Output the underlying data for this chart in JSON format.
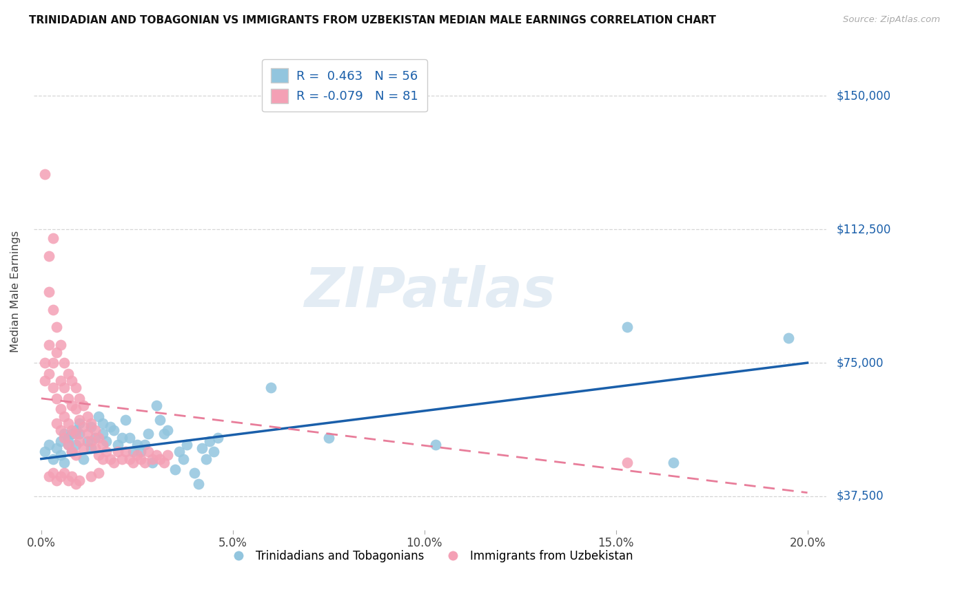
{
  "title": "TRINIDADIAN AND TOBAGONIAN VS IMMIGRANTS FROM UZBEKISTAN MEDIAN MALE EARNINGS CORRELATION CHART",
  "source": "Source: ZipAtlas.com",
  "xlabel_ticks": [
    "0.0%",
    "5.0%",
    "10.0%",
    "15.0%",
    "20.0%"
  ],
  "xlabel_tick_vals": [
    0.0,
    0.05,
    0.1,
    0.15,
    0.2
  ],
  "ylabel": "Median Male Earnings",
  "ylabel_ticks": [
    "$37,500",
    "$75,000",
    "$112,500",
    "$150,000"
  ],
  "ylabel_tick_vals": [
    37500,
    75000,
    112500,
    150000
  ],
  "xlim": [
    -0.002,
    0.205
  ],
  "ylim": [
    28000,
    162000
  ],
  "watermark": "ZIPatlas",
  "legend_blue_r": "0.463",
  "legend_blue_n": "56",
  "legend_pink_r": "-0.079",
  "legend_pink_n": "81",
  "blue_color": "#92c5de",
  "pink_color": "#f4a0b5",
  "blue_line_color": "#1a5faa",
  "pink_line_color": "#e87d9a",
  "blue_scatter": [
    [
      0.001,
      50000
    ],
    [
      0.002,
      52000
    ],
    [
      0.003,
      48000
    ],
    [
      0.004,
      51000
    ],
    [
      0.005,
      49000
    ],
    [
      0.005,
      53000
    ],
    [
      0.006,
      55000
    ],
    [
      0.006,
      47000
    ],
    [
      0.007,
      52000
    ],
    [
      0.007,
      54000
    ],
    [
      0.008,
      50000
    ],
    [
      0.008,
      55000
    ],
    [
      0.009,
      56000
    ],
    [
      0.009,
      52000
    ],
    [
      0.01,
      58000
    ],
    [
      0.01,
      55000
    ],
    [
      0.011,
      48000
    ],
    [
      0.012,
      53000
    ],
    [
      0.013,
      57000
    ],
    [
      0.013,
      51000
    ],
    [
      0.014,
      54000
    ],
    [
      0.015,
      60000
    ],
    [
      0.016,
      55000
    ],
    [
      0.016,
      58000
    ],
    [
      0.017,
      53000
    ],
    [
      0.018,
      57000
    ],
    [
      0.019,
      56000
    ],
    [
      0.02,
      52000
    ],
    [
      0.021,
      54000
    ],
    [
      0.022,
      59000
    ],
    [
      0.023,
      54000
    ],
    [
      0.024,
      50000
    ],
    [
      0.025,
      52000
    ],
    [
      0.026,
      50000
    ],
    [
      0.027,
      52000
    ],
    [
      0.028,
      55000
    ],
    [
      0.029,
      47000
    ],
    [
      0.03,
      63000
    ],
    [
      0.031,
      59000
    ],
    [
      0.032,
      55000
    ],
    [
      0.033,
      56000
    ],
    [
      0.035,
      45000
    ],
    [
      0.036,
      50000
    ],
    [
      0.037,
      48000
    ],
    [
      0.038,
      52000
    ],
    [
      0.04,
      44000
    ],
    [
      0.041,
      41000
    ],
    [
      0.042,
      51000
    ],
    [
      0.043,
      48000
    ],
    [
      0.044,
      53000
    ],
    [
      0.045,
      50000
    ],
    [
      0.046,
      54000
    ],
    [
      0.06,
      68000
    ],
    [
      0.075,
      54000
    ],
    [
      0.103,
      52000
    ],
    [
      0.153,
      85000
    ],
    [
      0.165,
      47000
    ],
    [
      0.195,
      82000
    ]
  ],
  "pink_scatter": [
    [
      0.001,
      128000
    ],
    [
      0.001,
      75000
    ],
    [
      0.001,
      70000
    ],
    [
      0.002,
      105000
    ],
    [
      0.002,
      95000
    ],
    [
      0.002,
      80000
    ],
    [
      0.002,
      72000
    ],
    [
      0.003,
      110000
    ],
    [
      0.003,
      90000
    ],
    [
      0.003,
      75000
    ],
    [
      0.003,
      68000
    ],
    [
      0.004,
      85000
    ],
    [
      0.004,
      78000
    ],
    [
      0.004,
      65000
    ],
    [
      0.004,
      58000
    ],
    [
      0.005,
      80000
    ],
    [
      0.005,
      70000
    ],
    [
      0.005,
      62000
    ],
    [
      0.005,
      56000
    ],
    [
      0.006,
      75000
    ],
    [
      0.006,
      68000
    ],
    [
      0.006,
      60000
    ],
    [
      0.006,
      54000
    ],
    [
      0.007,
      72000
    ],
    [
      0.007,
      65000
    ],
    [
      0.007,
      58000
    ],
    [
      0.007,
      52000
    ],
    [
      0.008,
      70000
    ],
    [
      0.008,
      63000
    ],
    [
      0.008,
      56000
    ],
    [
      0.008,
      50000
    ],
    [
      0.009,
      68000
    ],
    [
      0.009,
      62000
    ],
    [
      0.009,
      55000
    ],
    [
      0.009,
      49000
    ],
    [
      0.01,
      65000
    ],
    [
      0.01,
      59000
    ],
    [
      0.01,
      53000
    ],
    [
      0.011,
      63000
    ],
    [
      0.011,
      57000
    ],
    [
      0.011,
      51000
    ],
    [
      0.012,
      60000
    ],
    [
      0.012,
      55000
    ],
    [
      0.013,
      58000
    ],
    [
      0.013,
      53000
    ],
    [
      0.014,
      56000
    ],
    [
      0.014,
      51000
    ],
    [
      0.015,
      54000
    ],
    [
      0.015,
      49000
    ],
    [
      0.016,
      52000
    ],
    [
      0.016,
      48000
    ],
    [
      0.017,
      50000
    ],
    [
      0.018,
      48000
    ],
    [
      0.019,
      47000
    ],
    [
      0.02,
      50000
    ],
    [
      0.021,
      48000
    ],
    [
      0.022,
      50000
    ],
    [
      0.023,
      48000
    ],
    [
      0.024,
      47000
    ],
    [
      0.025,
      49000
    ],
    [
      0.026,
      48000
    ],
    [
      0.027,
      47000
    ],
    [
      0.028,
      50000
    ],
    [
      0.029,
      48000
    ],
    [
      0.03,
      49000
    ],
    [
      0.031,
      48000
    ],
    [
      0.032,
      47000
    ],
    [
      0.033,
      49000
    ],
    [
      0.002,
      43000
    ],
    [
      0.003,
      44000
    ],
    [
      0.004,
      42000
    ],
    [
      0.005,
      43000
    ],
    [
      0.006,
      44000
    ],
    [
      0.007,
      42000
    ],
    [
      0.008,
      43000
    ],
    [
      0.009,
      41000
    ],
    [
      0.01,
      42000
    ],
    [
      0.013,
      43000
    ],
    [
      0.015,
      44000
    ],
    [
      0.153,
      47000
    ]
  ]
}
